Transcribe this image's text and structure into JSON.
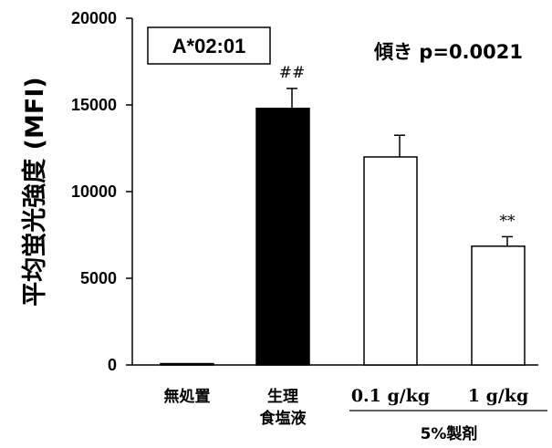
{
  "chart_data": {
    "type": "bar",
    "ylabel": "平均蛍光強度 (MFI)",
    "ylim": [
      0,
      20000
    ],
    "yticks": [
      0,
      5000,
      10000,
      15000,
      20000
    ],
    "categories": [
      "無処置",
      "生理食塩液",
      "0.1 g/kg",
      "1 g/kg"
    ],
    "category_lines": [
      [
        "無処置"
      ],
      [
        "生理",
        "食塩液"
      ],
      [
        "0.1 g/kg"
      ],
      [
        "1 g/kg"
      ]
    ],
    "values": [
      50,
      14800,
      12000,
      6850
    ],
    "errors": [
      0,
      1150,
      1250,
      550
    ],
    "fills": [
      "#000000",
      "#000000",
      "#ffffff",
      "#ffffff"
    ],
    "significance": [
      "",
      "##",
      "",
      "**"
    ],
    "group_label": "5%製剤",
    "boxed_label": "A*02:01",
    "annotation": "傾き p=0.0021",
    "grid": false,
    "legend": "none"
  }
}
